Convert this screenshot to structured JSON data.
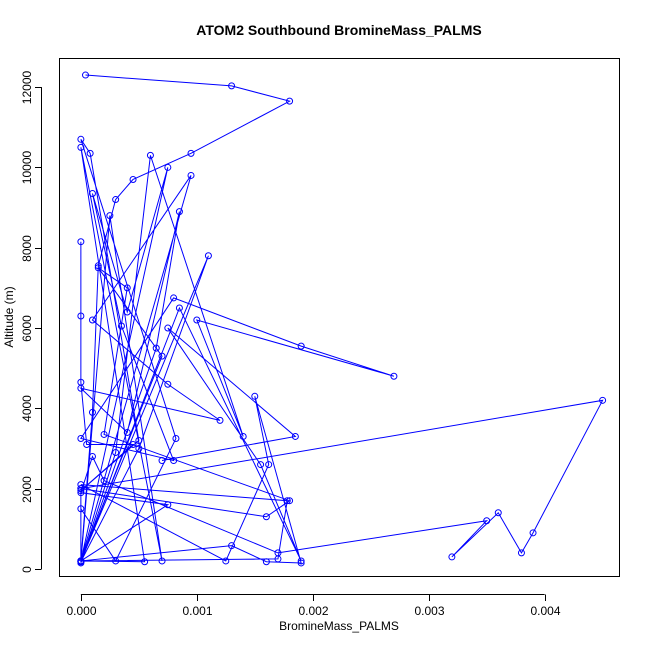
{
  "chart_data": {
    "type": "line",
    "title": "ATOM2 Southbound BromineMass_PALMS",
    "xlabel": "BromineMass_PALMS",
    "ylabel": "Altitude (m)",
    "xlim": [
      -0.00018,
      0.00465
    ],
    "ylim": [
      -200,
      12700
    ],
    "x_ticks": [
      {
        "value": 0,
        "label": "0.000"
      },
      {
        "value": 0.001,
        "label": "0.001"
      },
      {
        "value": 0.002,
        "label": "0.002"
      },
      {
        "value": 0.003,
        "label": "0.003"
      },
      {
        "value": 0.004,
        "label": "0.004"
      }
    ],
    "y_ticks": [
      {
        "value": 0,
        "label": "0"
      },
      {
        "value": 2000,
        "label": "2000"
      },
      {
        "value": 4000,
        "label": "4000"
      },
      {
        "value": 6000,
        "label": "6000"
      },
      {
        "value": 8000,
        "label": "8000"
      },
      {
        "value": 10000,
        "label": "10000"
      },
      {
        "value": 12000,
        "label": "12000"
      }
    ],
    "grid": false,
    "legend": "none",
    "series_color": "#0000ff",
    "series": [
      {
        "x": [
          4e-05,
          0.0013,
          0.0018,
          0.00095,
          0.00045,
          0.0003,
          0.00015,
          0.0001,
          0.0,
          0.00075,
          0.0004,
          0.0001,
          0.00035,
          0.0008,
          0.0,
          0.0008,
          0.0019,
          0.0027,
          0.001,
          0.0014,
          0.0006,
          0.0003,
          0.0,
          0.00065,
          0.00085,
          0.0004,
          0.0,
          0.0012,
          0.00075,
          0.0001,
          0.00095,
          0.0,
          0.0007,
          0.00015,
          0.0004,
          0.0002,
          0.0018,
          0.0016,
          0.0,
          0.0045,
          0.0039,
          0.0038,
          0.0036,
          0.0032,
          0.0035,
          0.0017,
          0.0002,
          0.0001,
          0.0,
          0.00075,
          0.0
        ],
        "y": [
          12300,
          12030,
          11650,
          10350,
          9700,
          9200,
          7550,
          3900,
          200,
          10000,
          6400,
          9350,
          6050,
          2700,
          3250,
          6750,
          5550,
          4800,
          6200,
          3300,
          10300,
          2900,
          150,
          5500,
          8900,
          3400,
          4500,
          3700,
          4600,
          6200,
          9800,
          200,
          5300,
          7500,
          7000,
          3350,
          1700,
          1300,
          2000,
          4200,
          900,
          400,
          1400,
          300,
          1200,
          400,
          2200,
          2800,
          1900,
          1600,
          200
        ]
      },
      {
        "x": [
          0.0,
          0.0,
          0.0,
          5e-05,
          0.00045,
          0.0,
          0.0005,
          8e-05,
          0.0,
          0.00082,
          0.0003,
          0.0,
          0.0,
          0.0,
          0.00025,
          0.0007,
          0.0,
          0.00055,
          0.0
        ],
        "y": [
          8150,
          6300,
          4650,
          3100,
          3100,
          1950,
          3200,
          10350,
          10700,
          3250,
          200,
          1500,
          2000,
          180,
          8800,
          200,
          10500,
          180,
          200
        ]
      },
      {
        "x": [
          0.0,
          0.0013,
          0.0016,
          0.0019,
          0.0015,
          0.00162,
          0.00125,
          0.0,
          0.00178,
          0.0017,
          0.0,
          0.0011,
          0.0005,
          0.0,
          0.00085,
          0.0019,
          0.00155,
          0.00075,
          0.00185,
          0.0007
        ],
        "y": [
          200,
          580,
          180,
          150,
          4300,
          2600,
          200,
          2100,
          1700,
          250,
          200,
          7800,
          3000,
          180,
          6500,
          200,
          2600,
          6000,
          3300,
          2700
        ]
      }
    ]
  }
}
